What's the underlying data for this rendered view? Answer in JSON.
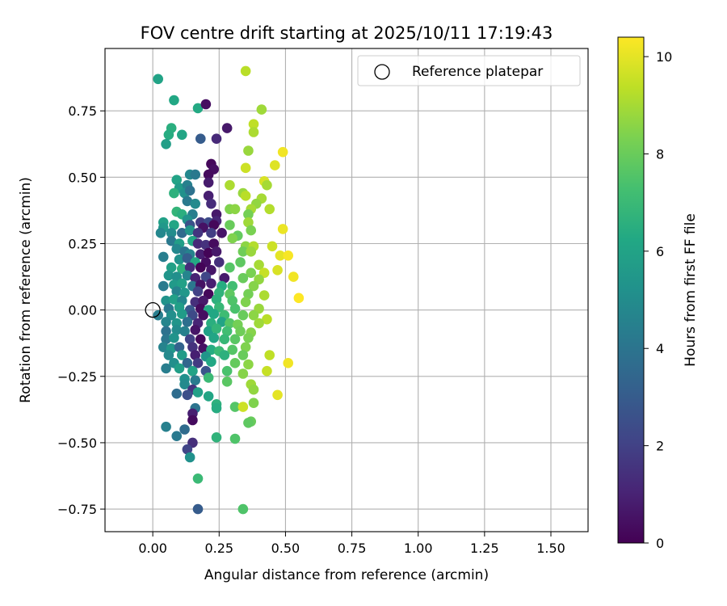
{
  "chart_data": {
    "type": "scatter",
    "title": "FOV centre drift starting at 2025/10/11 17:19:43",
    "xlabel": "Angular distance from reference (arcmin)",
    "ylabel": "Rotation from reference (arcmin)",
    "xlim": [
      -0.18,
      1.64
    ],
    "ylim": [
      -0.835,
      0.985
    ],
    "xticks": [
      0.0,
      0.25,
      0.5,
      0.75,
      1.0,
      1.25,
      1.5
    ],
    "xtick_labels": [
      "0.00",
      "0.25",
      "0.50",
      "0.75",
      "1.00",
      "1.25",
      "1.50"
    ],
    "yticks": [
      -0.75,
      -0.5,
      -0.25,
      0.0,
      0.25,
      0.5,
      0.75
    ],
    "ytick_labels": [
      "−0.75",
      "−0.50",
      "−0.25",
      "0.00",
      "0.25",
      "0.50",
      "0.75"
    ],
    "grid": true,
    "legend": {
      "position": "top-right",
      "entries": [
        "Reference platepar"
      ]
    },
    "reference_point": {
      "x": 0.0,
      "y": 0.0
    },
    "colorbar": {
      "label": "Hours from first FF file",
      "colormap": "viridis",
      "min": 0,
      "max": 10.4,
      "ticks": [
        0,
        2,
        4,
        6,
        8,
        10
      ],
      "tick_labels": [
        "0",
        "2",
        "4",
        "6",
        "8",
        "10"
      ]
    },
    "points": [
      {
        "x": 0.02,
        "y": 0.87,
        "h": 6.0
      },
      {
        "x": 0.08,
        "y": 0.79,
        "h": 6.2
      },
      {
        "x": 0.17,
        "y": 0.76,
        "h": 6.3
      },
      {
        "x": 0.2,
        "y": 0.775,
        "h": 0.4
      },
      {
        "x": 0.35,
        "y": 0.9,
        "h": 9.3
      },
      {
        "x": 0.41,
        "y": 0.755,
        "h": 8.9
      },
      {
        "x": 0.07,
        "y": 0.685,
        "h": 6.5
      },
      {
        "x": 0.06,
        "y": 0.66,
        "h": 6.4
      },
      {
        "x": 0.11,
        "y": 0.66,
        "h": 6.1
      },
      {
        "x": 0.05,
        "y": 0.625,
        "h": 5.8
      },
      {
        "x": 0.18,
        "y": 0.645,
        "h": 3.0
      },
      {
        "x": 0.24,
        "y": 0.645,
        "h": 1.2
      },
      {
        "x": 0.28,
        "y": 0.685,
        "h": 0.7
      },
      {
        "x": 0.38,
        "y": 0.7,
        "h": 9.4
      },
      {
        "x": 0.38,
        "y": 0.67,
        "h": 9.1
      },
      {
        "x": 0.36,
        "y": 0.6,
        "h": 8.8
      },
      {
        "x": 0.49,
        "y": 0.595,
        "h": 10.2
      },
      {
        "x": 0.46,
        "y": 0.545,
        "h": 9.9
      },
      {
        "x": 0.35,
        "y": 0.535,
        "h": 9.6
      },
      {
        "x": 0.22,
        "y": 0.55,
        "h": 0.2
      },
      {
        "x": 0.23,
        "y": 0.53,
        "h": 0.4
      },
      {
        "x": 0.21,
        "y": 0.51,
        "h": 0.3
      },
      {
        "x": 0.14,
        "y": 0.51,
        "h": 4.8
      },
      {
        "x": 0.16,
        "y": 0.51,
        "h": 4.2
      },
      {
        "x": 0.09,
        "y": 0.49,
        "h": 6.0
      },
      {
        "x": 0.1,
        "y": 0.46,
        "h": 5.7
      },
      {
        "x": 0.13,
        "y": 0.47,
        "h": 4.5
      },
      {
        "x": 0.21,
        "y": 0.48,
        "h": 0.8
      },
      {
        "x": 0.42,
        "y": 0.485,
        "h": 9.8
      },
      {
        "x": 0.43,
        "y": 0.47,
        "h": 9.0
      },
      {
        "x": 0.08,
        "y": 0.44,
        "h": 6.6
      },
      {
        "x": 0.12,
        "y": 0.44,
        "h": 5.2
      },
      {
        "x": 0.14,
        "y": 0.45,
        "h": 3.9
      },
      {
        "x": 0.21,
        "y": 0.43,
        "h": 0.9
      },
      {
        "x": 0.29,
        "y": 0.47,
        "h": 9.1
      },
      {
        "x": 0.34,
        "y": 0.44,
        "h": 8.8
      },
      {
        "x": 0.35,
        "y": 0.43,
        "h": 9.3
      },
      {
        "x": 0.41,
        "y": 0.42,
        "h": 9.0
      },
      {
        "x": 0.39,
        "y": 0.4,
        "h": 8.7
      },
      {
        "x": 0.13,
        "y": 0.41,
        "h": 4.2
      },
      {
        "x": 0.16,
        "y": 0.4,
        "h": 4.9
      },
      {
        "x": 0.22,
        "y": 0.4,
        "h": 1.3
      },
      {
        "x": 0.29,
        "y": 0.38,
        "h": 8.4
      },
      {
        "x": 0.31,
        "y": 0.38,
        "h": 8.6
      },
      {
        "x": 0.37,
        "y": 0.38,
        "h": 9.0
      },
      {
        "x": 0.44,
        "y": 0.38,
        "h": 9.2
      },
      {
        "x": 0.09,
        "y": 0.37,
        "h": 6.8
      },
      {
        "x": 0.11,
        "y": 0.36,
        "h": 6.5
      },
      {
        "x": 0.15,
        "y": 0.36,
        "h": 4.4
      },
      {
        "x": 0.24,
        "y": 0.36,
        "h": 0.7
      },
      {
        "x": 0.36,
        "y": 0.36,
        "h": 8.2
      },
      {
        "x": 0.13,
        "y": 0.34,
        "h": 5.3
      },
      {
        "x": 0.18,
        "y": 0.33,
        "h": 1.8
      },
      {
        "x": 0.21,
        "y": 0.33,
        "h": 2.4
      },
      {
        "x": 0.24,
        "y": 0.335,
        "h": 1.1
      },
      {
        "x": 0.04,
        "y": 0.33,
        "h": 5.9
      },
      {
        "x": 0.04,
        "y": 0.31,
        "h": 5.5
      },
      {
        "x": 0.08,
        "y": 0.32,
        "h": 6.1
      },
      {
        "x": 0.14,
        "y": 0.32,
        "h": 2.6
      },
      {
        "x": 0.19,
        "y": 0.31,
        "h": 0.5
      },
      {
        "x": 0.23,
        "y": 0.32,
        "h": 0.2
      },
      {
        "x": 0.29,
        "y": 0.32,
        "h": 8.0
      },
      {
        "x": 0.36,
        "y": 0.33,
        "h": 8.9
      },
      {
        "x": 0.37,
        "y": 0.3,
        "h": 8.3
      },
      {
        "x": 0.49,
        "y": 0.305,
        "h": 10.1
      },
      {
        "x": 0.03,
        "y": 0.29,
        "h": 4.8
      },
      {
        "x": 0.07,
        "y": 0.29,
        "h": 5.0
      },
      {
        "x": 0.11,
        "y": 0.29,
        "h": 3.6
      },
      {
        "x": 0.14,
        "y": 0.3,
        "h": 5.4
      },
      {
        "x": 0.17,
        "y": 0.29,
        "h": 1.6
      },
      {
        "x": 0.22,
        "y": 0.29,
        "h": 1.9
      },
      {
        "x": 0.26,
        "y": 0.29,
        "h": 0.6
      },
      {
        "x": 0.32,
        "y": 0.28,
        "h": 7.9
      },
      {
        "x": 0.3,
        "y": 0.27,
        "h": 8.4
      },
      {
        "x": 0.07,
        "y": 0.26,
        "h": 4.2
      },
      {
        "x": 0.1,
        "y": 0.25,
        "h": 5.8
      },
      {
        "x": 0.15,
        "y": 0.26,
        "h": 6.2
      },
      {
        "x": 0.17,
        "y": 0.25,
        "h": 1.2
      },
      {
        "x": 0.2,
        "y": 0.245,
        "h": 1.5
      },
      {
        "x": 0.23,
        "y": 0.25,
        "h": 0.3
      },
      {
        "x": 0.35,
        "y": 0.24,
        "h": 8.6
      },
      {
        "x": 0.38,
        "y": 0.24,
        "h": 9.2
      },
      {
        "x": 0.45,
        "y": 0.24,
        "h": 9.6
      },
      {
        "x": 0.48,
        "y": 0.205,
        "h": 10.0
      },
      {
        "x": 0.51,
        "y": 0.205,
        "h": 10.3
      },
      {
        "x": 0.09,
        "y": 0.23,
        "h": 4.8
      },
      {
        "x": 0.12,
        "y": 0.22,
        "h": 4.0
      },
      {
        "x": 0.14,
        "y": 0.21,
        "h": 4.6
      },
      {
        "x": 0.18,
        "y": 0.21,
        "h": 0.9
      },
      {
        "x": 0.21,
        "y": 0.215,
        "h": 0.1
      },
      {
        "x": 0.24,
        "y": 0.22,
        "h": 0.7
      },
      {
        "x": 0.34,
        "y": 0.22,
        "h": 8.1
      },
      {
        "x": 0.37,
        "y": 0.22,
        "h": 8.8
      },
      {
        "x": 0.04,
        "y": 0.2,
        "h": 4.4
      },
      {
        "x": 0.1,
        "y": 0.19,
        "h": 5.2
      },
      {
        "x": 0.13,
        "y": 0.195,
        "h": 3.1
      },
      {
        "x": 0.16,
        "y": 0.18,
        "h": 6.3
      },
      {
        "x": 0.2,
        "y": 0.18,
        "h": 0.4
      },
      {
        "x": 0.25,
        "y": 0.18,
        "h": 1.4
      },
      {
        "x": 0.33,
        "y": 0.18,
        "h": 7.8
      },
      {
        "x": 0.4,
        "y": 0.17,
        "h": 9.0
      },
      {
        "x": 0.07,
        "y": 0.16,
        "h": 5.9
      },
      {
        "x": 0.11,
        "y": 0.155,
        "h": 6.6
      },
      {
        "x": 0.14,
        "y": 0.16,
        "h": 1.3
      },
      {
        "x": 0.18,
        "y": 0.16,
        "h": 0.1
      },
      {
        "x": 0.22,
        "y": 0.15,
        "h": 0.6
      },
      {
        "x": 0.29,
        "y": 0.16,
        "h": 7.6
      },
      {
        "x": 0.37,
        "y": 0.14,
        "h": 8.3
      },
      {
        "x": 0.42,
        "y": 0.14,
        "h": 9.5
      },
      {
        "x": 0.47,
        "y": 0.15,
        "h": 9.8
      },
      {
        "x": 0.06,
        "y": 0.13,
        "h": 5.4
      },
      {
        "x": 0.09,
        "y": 0.125,
        "h": 5.1
      },
      {
        "x": 0.13,
        "y": 0.13,
        "h": 4.7
      },
      {
        "x": 0.16,
        "y": 0.12,
        "h": 1.0
      },
      {
        "x": 0.2,
        "y": 0.125,
        "h": 2.2
      },
      {
        "x": 0.27,
        "y": 0.12,
        "h": 0.8
      },
      {
        "x": 0.34,
        "y": 0.12,
        "h": 8.0
      },
      {
        "x": 0.4,
        "y": 0.115,
        "h": 8.7
      },
      {
        "x": 0.53,
        "y": 0.125,
        "h": 10.2
      },
      {
        "x": 0.04,
        "y": 0.09,
        "h": 4.3
      },
      {
        "x": 0.08,
        "y": 0.095,
        "h": 5.6
      },
      {
        "x": 0.11,
        "y": 0.1,
        "h": 5.9
      },
      {
        "x": 0.15,
        "y": 0.09,
        "h": 4.1
      },
      {
        "x": 0.18,
        "y": 0.095,
        "h": 0.5
      },
      {
        "x": 0.22,
        "y": 0.1,
        "h": 0.9
      },
      {
        "x": 0.26,
        "y": 0.09,
        "h": 6.4
      },
      {
        "x": 0.3,
        "y": 0.09,
        "h": 7.2
      },
      {
        "x": 0.38,
        "y": 0.09,
        "h": 8.5
      },
      {
        "x": 0.09,
        "y": 0.07,
        "h": 4.6
      },
      {
        "x": 0.12,
        "y": 0.065,
        "h": 5.5
      },
      {
        "x": 0.17,
        "y": 0.07,
        "h": 2.0
      },
      {
        "x": 0.21,
        "y": 0.06,
        "h": 0.2
      },
      {
        "x": 0.25,
        "y": 0.065,
        "h": 6.7
      },
      {
        "x": 0.29,
        "y": 0.06,
        "h": 7.8
      },
      {
        "x": 0.36,
        "y": 0.06,
        "h": 8.2
      },
      {
        "x": 0.42,
        "y": 0.055,
        "h": 9.1
      },
      {
        "x": 0.55,
        "y": 0.045,
        "h": 10.4
      },
      {
        "x": 0.05,
        "y": 0.035,
        "h": 5.3
      },
      {
        "x": 0.08,
        "y": 0.04,
        "h": 5.9
      },
      {
        "x": 0.11,
        "y": 0.035,
        "h": 4.8
      },
      {
        "x": 0.16,
        "y": 0.03,
        "h": 1.4
      },
      {
        "x": 0.19,
        "y": 0.035,
        "h": 0.7
      },
      {
        "x": 0.24,
        "y": 0.04,
        "h": 6.6
      },
      {
        "x": 0.3,
        "y": 0.035,
        "h": 7.5
      },
      {
        "x": 0.35,
        "y": 0.03,
        "h": 8.4
      },
      {
        "x": 0.06,
        "y": 0.005,
        "h": 4.2
      },
      {
        "x": 0.1,
        "y": 0.01,
        "h": 5.8
      },
      {
        "x": 0.14,
        "y": 0.0,
        "h": 2.9
      },
      {
        "x": 0.18,
        "y": 0.005,
        "h": 0.3
      },
      {
        "x": 0.21,
        "y": 0.0,
        "h": 6.3
      },
      {
        "x": 0.25,
        "y": 0.01,
        "h": 6.9
      },
      {
        "x": 0.31,
        "y": 0.005,
        "h": 7.4
      },
      {
        "x": 0.4,
        "y": 0.005,
        "h": 8.8
      },
      {
        "x": 0.02,
        "y": -0.02,
        "h": 4.4
      },
      {
        "x": 0.07,
        "y": -0.02,
        "h": 5.1
      },
      {
        "x": 0.11,
        "y": -0.015,
        "h": 5.7
      },
      {
        "x": 0.15,
        "y": -0.02,
        "h": 2.3
      },
      {
        "x": 0.19,
        "y": -0.02,
        "h": 0.4
      },
      {
        "x": 0.23,
        "y": -0.015,
        "h": 6.2
      },
      {
        "x": 0.27,
        "y": -0.02,
        "h": 7.1
      },
      {
        "x": 0.34,
        "y": -0.02,
        "h": 8.0
      },
      {
        "x": 0.38,
        "y": -0.02,
        "h": 8.6
      },
      {
        "x": 0.43,
        "y": -0.035,
        "h": 9.3
      },
      {
        "x": 0.05,
        "y": -0.045,
        "h": 4.7
      },
      {
        "x": 0.09,
        "y": -0.05,
        "h": 5.4
      },
      {
        "x": 0.13,
        "y": -0.045,
        "h": 3.8
      },
      {
        "x": 0.17,
        "y": -0.05,
        "h": 1.1
      },
      {
        "x": 0.22,
        "y": -0.05,
        "h": 6.5
      },
      {
        "x": 0.26,
        "y": -0.045,
        "h": 6.0
      },
      {
        "x": 0.29,
        "y": -0.05,
        "h": 7.6
      },
      {
        "x": 0.32,
        "y": -0.055,
        "h": 8.2
      },
      {
        "x": 0.4,
        "y": -0.05,
        "h": 8.9
      },
      {
        "x": 0.05,
        "y": -0.08,
        "h": 3.9
      },
      {
        "x": 0.09,
        "y": -0.075,
        "h": 5.0
      },
      {
        "x": 0.12,
        "y": -0.08,
        "h": 4.5
      },
      {
        "x": 0.16,
        "y": -0.075,
        "h": 0.6
      },
      {
        "x": 0.21,
        "y": -0.08,
        "h": 5.9
      },
      {
        "x": 0.24,
        "y": -0.07,
        "h": 6.8
      },
      {
        "x": 0.28,
        "y": -0.08,
        "h": 7.2
      },
      {
        "x": 0.33,
        "y": -0.08,
        "h": 8.1
      },
      {
        "x": 0.37,
        "y": -0.085,
        "h": 8.5
      },
      {
        "x": 0.05,
        "y": -0.11,
        "h": 4.1
      },
      {
        "x": 0.08,
        "y": -0.105,
        "h": 5.3
      },
      {
        "x": 0.14,
        "y": -0.11,
        "h": 2.0
      },
      {
        "x": 0.18,
        "y": -0.11,
        "h": 0.2
      },
      {
        "x": 0.23,
        "y": -0.105,
        "h": 6.1
      },
      {
        "x": 0.27,
        "y": -0.11,
        "h": 6.9
      },
      {
        "x": 0.31,
        "y": -0.11,
        "h": 7.7
      },
      {
        "x": 0.36,
        "y": -0.105,
        "h": 8.3
      },
      {
        "x": 0.04,
        "y": -0.14,
        "h": 4.6
      },
      {
        "x": 0.07,
        "y": -0.145,
        "h": 5.5
      },
      {
        "x": 0.1,
        "y": -0.14,
        "h": 3.3
      },
      {
        "x": 0.15,
        "y": -0.14,
        "h": 1.5
      },
      {
        "x": 0.19,
        "y": -0.145,
        "h": 0.5
      },
      {
        "x": 0.22,
        "y": -0.15,
        "h": 6.4
      },
      {
        "x": 0.25,
        "y": -0.155,
        "h": 7.0
      },
      {
        "x": 0.3,
        "y": -0.15,
        "h": 7.6
      },
      {
        "x": 0.35,
        "y": -0.14,
        "h": 8.4
      },
      {
        "x": 0.06,
        "y": -0.17,
        "h": 4.9
      },
      {
        "x": 0.11,
        "y": -0.17,
        "h": 5.7
      },
      {
        "x": 0.16,
        "y": -0.17,
        "h": 0.9
      },
      {
        "x": 0.2,
        "y": -0.175,
        "h": 5.4
      },
      {
        "x": 0.27,
        "y": -0.17,
        "h": 6.6
      },
      {
        "x": 0.34,
        "y": -0.17,
        "h": 8.0
      },
      {
        "x": 0.44,
        "y": -0.17,
        "h": 9.4
      },
      {
        "x": 0.08,
        "y": -0.2,
        "h": 5.1
      },
      {
        "x": 0.13,
        "y": -0.2,
        "h": 3.4
      },
      {
        "x": 0.17,
        "y": -0.2,
        "h": 1.8
      },
      {
        "x": 0.22,
        "y": -0.195,
        "h": 6.2
      },
      {
        "x": 0.31,
        "y": -0.2,
        "h": 7.9
      },
      {
        "x": 0.36,
        "y": -0.205,
        "h": 8.6
      },
      {
        "x": 0.51,
        "y": -0.2,
        "h": 10.2
      },
      {
        "x": 0.05,
        "y": -0.22,
        "h": 4.4
      },
      {
        "x": 0.1,
        "y": -0.22,
        "h": 5.8
      },
      {
        "x": 0.15,
        "y": -0.23,
        "h": 6.0
      },
      {
        "x": 0.2,
        "y": -0.23,
        "h": 2.7
      },
      {
        "x": 0.28,
        "y": -0.23,
        "h": 7.4
      },
      {
        "x": 0.34,
        "y": -0.24,
        "h": 8.5
      },
      {
        "x": 0.43,
        "y": -0.23,
        "h": 9.5
      },
      {
        "x": 0.12,
        "y": -0.26,
        "h": 5.2
      },
      {
        "x": 0.16,
        "y": -0.265,
        "h": 4.3
      },
      {
        "x": 0.21,
        "y": -0.255,
        "h": 7.0
      },
      {
        "x": 0.28,
        "y": -0.27,
        "h": 7.7
      },
      {
        "x": 0.37,
        "y": -0.28,
        "h": 8.9
      },
      {
        "x": 0.12,
        "y": -0.28,
        "h": 4.9
      },
      {
        "x": 0.15,
        "y": -0.3,
        "h": 1.6
      },
      {
        "x": 0.38,
        "y": -0.3,
        "h": 8.7
      },
      {
        "x": 0.47,
        "y": -0.32,
        "h": 10.0
      },
      {
        "x": 0.09,
        "y": -0.315,
        "h": 3.7
      },
      {
        "x": 0.13,
        "y": -0.32,
        "h": 2.5
      },
      {
        "x": 0.17,
        "y": -0.31,
        "h": 5.9
      },
      {
        "x": 0.21,
        "y": -0.325,
        "h": 6.1
      },
      {
        "x": 0.38,
        "y": -0.35,
        "h": 8.4
      },
      {
        "x": 0.16,
        "y": -0.37,
        "h": 4.0
      },
      {
        "x": 0.24,
        "y": -0.355,
        "h": 6.6
      },
      {
        "x": 0.24,
        "y": -0.37,
        "h": 6.4
      },
      {
        "x": 0.31,
        "y": -0.365,
        "h": 7.6
      },
      {
        "x": 0.34,
        "y": -0.365,
        "h": 9.6
      },
      {
        "x": 0.15,
        "y": -0.39,
        "h": 0.9
      },
      {
        "x": 0.15,
        "y": -0.415,
        "h": 0.3
      },
      {
        "x": 0.37,
        "y": -0.42,
        "h": 8.0
      },
      {
        "x": 0.36,
        "y": -0.425,
        "h": 7.8
      },
      {
        "x": 0.05,
        "y": -0.44,
        "h": 4.5
      },
      {
        "x": 0.12,
        "y": -0.45,
        "h": 3.6
      },
      {
        "x": 0.09,
        "y": -0.475,
        "h": 4.2
      },
      {
        "x": 0.24,
        "y": -0.48,
        "h": 6.7
      },
      {
        "x": 0.31,
        "y": -0.485,
        "h": 7.5
      },
      {
        "x": 0.15,
        "y": -0.5,
        "h": 1.4
      },
      {
        "x": 0.13,
        "y": -0.525,
        "h": 2.1
      },
      {
        "x": 0.14,
        "y": -0.555,
        "h": 5.2
      },
      {
        "x": 0.17,
        "y": -0.635,
        "h": 7.0
      },
      {
        "x": 0.17,
        "y": -0.75,
        "h": 3.0
      },
      {
        "x": 0.34,
        "y": -0.75,
        "h": 7.5
      }
    ]
  }
}
